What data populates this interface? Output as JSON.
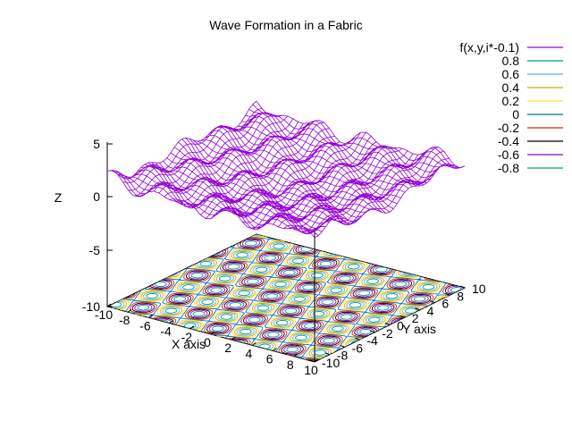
{
  "chart_data": {
    "type": "surface3d",
    "title": "Wave Formation in a Fabric",
    "xlabel": "X axis",
    "ylabel": "Y axis",
    "zlabel": "Z",
    "xlim": [
      -10,
      10
    ],
    "ylim": [
      -10,
      10
    ],
    "zlim": [
      -10,
      5
    ],
    "x_ticks": [
      "-10",
      "-8",
      "-6",
      "-4",
      "-2",
      "0",
      "2",
      "4",
      "6",
      "8",
      "10"
    ],
    "y_ticks": [
      "-10",
      "-8",
      "-6",
      "-4",
      "-2",
      "0",
      "2",
      "4",
      "6",
      "8",
      "10"
    ],
    "z_ticks": [
      "5",
      "0",
      "-5",
      "-10"
    ],
    "surface": {
      "name": "f(x,y,i*-0.1)",
      "color": "#9400d3",
      "grid_steps": 40
    },
    "contour_levels": [
      {
        "label": "0.8",
        "value": 0.8,
        "color": "#009e73"
      },
      {
        "label": "0.6",
        "value": 0.6,
        "color": "#56b4e9"
      },
      {
        "label": "0.4",
        "value": 0.4,
        "color": "#e69f00"
      },
      {
        "label": "0.2",
        "value": 0.2,
        "color": "#f0e442"
      },
      {
        "label": "0",
        "value": 0,
        "color": "#0072b2"
      },
      {
        "label": "-0.2",
        "value": -0.2,
        "color": "#e51e10"
      },
      {
        "label": "-0.4",
        "value": -0.4,
        "color": "#000000"
      },
      {
        "label": "-0.6",
        "value": -0.6,
        "color": "#9400d3"
      },
      {
        "label": "-0.8",
        "value": -0.8,
        "color": "#009e73"
      }
    ]
  }
}
